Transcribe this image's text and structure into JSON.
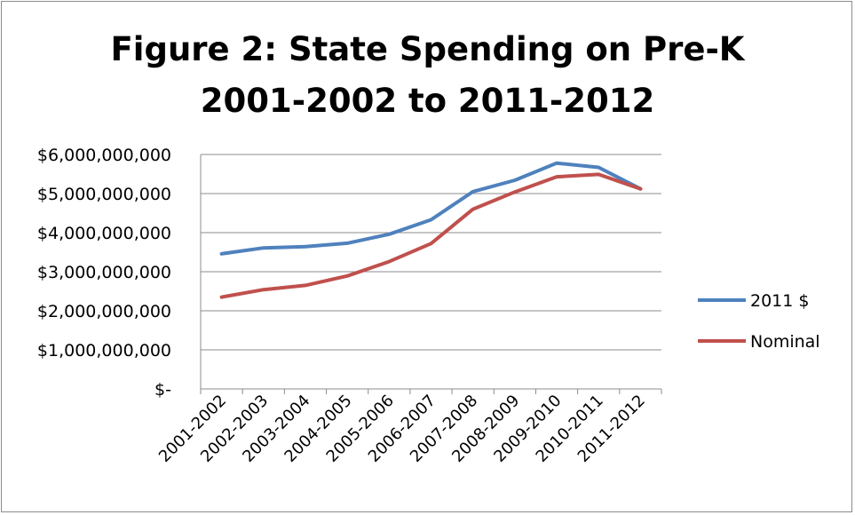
{
  "chart_data": {
    "type": "line",
    "title_line1": "Figure 2: State Spending on Pre-K",
    "title_line2": "2001-2002 to 2011-2012",
    "categories": [
      "2001-2002",
      "2002-2003",
      "2003-2004",
      "2004-2005",
      "2005-2006",
      "2006-2007",
      "2007-2008",
      "2008-2009",
      "2009-2010",
      "2010-2011",
      "2011-2012"
    ],
    "y_ticks": [
      {
        "value": 0,
        "label": "$-"
      },
      {
        "value": 1000000000,
        "label": "$1,000,000,000"
      },
      {
        "value": 2000000000,
        "label": "$2,000,000,000"
      },
      {
        "value": 3000000000,
        "label": "$3,000,000,000"
      },
      {
        "value": 4000000000,
        "label": "$4,000,000,000"
      },
      {
        "value": 5000000000,
        "label": "$5,000,000,000"
      },
      {
        "value": 6000000000,
        "label": "$6,000,000,000"
      }
    ],
    "ylim": [
      0,
      6000000000
    ],
    "grid": true,
    "legend_position": "right",
    "series": [
      {
        "name": "2011 $",
        "color": "#4f81bd",
        "values": [
          3460000000,
          3610000000,
          3640000000,
          3730000000,
          3960000000,
          4330000000,
          5050000000,
          5340000000,
          5780000000,
          5670000000,
          5120000000
        ]
      },
      {
        "name": "Nominal",
        "color": "#c0504d",
        "values": [
          2350000000,
          2540000000,
          2650000000,
          2890000000,
          3260000000,
          3720000000,
          4600000000,
          5040000000,
          5430000000,
          5490000000,
          5120000000
        ]
      }
    ]
  }
}
